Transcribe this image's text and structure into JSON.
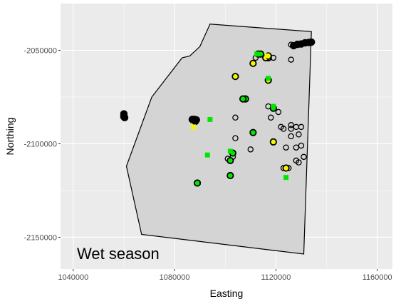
{
  "chart_data": {
    "type": "scatter",
    "title": "",
    "xlabel": "Easting",
    "ylabel": "Northing",
    "annotation": "Wet season",
    "xlim": [
      1035000,
      1166000
    ],
    "ylim": [
      -2167000,
      -2025000
    ],
    "x_ticks": [
      1040000,
      1080000,
      1120000,
      1160000
    ],
    "y_ticks": [
      -2050000,
      -2100000,
      -2150000
    ],
    "x_tick_labels": [
      "1040000",
      "1080000",
      "1120000",
      "1160000"
    ],
    "y_tick_labels": [
      "-2050000",
      "-2100000",
      "-2150000"
    ],
    "grid": true,
    "legend": "none",
    "colors": {
      "panel": "#ebebeb",
      "grid_major": "#ffffff",
      "polygon_fill": "#d4d4d4",
      "polygon_stroke": "#000000",
      "green": "#00e600",
      "yellow": "#f5f500",
      "ring": "#000000"
    },
    "polygon": [
      [
        1067000,
        -2148500
      ],
      [
        1061000,
        -2112000
      ],
      [
        1071000,
        -2075000
      ],
      [
        1083000,
        -2054000
      ],
      [
        1086000,
        -2053000
      ],
      [
        1090000,
        -2048000
      ],
      [
        1094000,
        -2036000
      ],
      [
        1134000,
        -2040000
      ],
      [
        1131000,
        -2159000
      ]
    ],
    "series": [
      {
        "marker": "filled-black",
        "points": [
          [
            1060000,
            -2084000
          ],
          [
            1060000,
            -2085500
          ],
          [
            1060300,
            -2086000
          ],
          [
            1087000,
            -2087000
          ],
          [
            1087800,
            -2087000
          ],
          [
            1088600,
            -2087200
          ],
          [
            1088200,
            -2088000
          ],
          [
            1127000,
            -2047500
          ],
          [
            1128500,
            -2046800
          ],
          [
            1130000,
            -2046600
          ],
          [
            1131500,
            -2046000
          ],
          [
            1133000,
            -2045800
          ],
          [
            1134000,
            -2045600
          ]
        ]
      },
      {
        "marker": "open-circle",
        "points": [
          [
            1112000,
            -2054000
          ],
          [
            1119000,
            -2054000
          ],
          [
            1126000,
            -2055000
          ],
          [
            1132000,
            -2046000
          ],
          [
            1129000,
            -2047000
          ],
          [
            1126000,
            -2047000
          ],
          [
            1122000,
            -2091000
          ],
          [
            1126000,
            -2090000
          ],
          [
            1128000,
            -2091000
          ],
          [
            1130000,
            -2091000
          ],
          [
            1123000,
            -2092000
          ],
          [
            1126000,
            -2092000
          ],
          [
            1118000,
            -2086000
          ],
          [
            1121000,
            -2083000
          ],
          [
            1126000,
            -2096000
          ],
          [
            1129000,
            -2095000
          ],
          [
            1124000,
            -2102000
          ],
          [
            1128000,
            -2102000
          ],
          [
            1130000,
            -2101000
          ],
          [
            1131000,
            -2107000
          ],
          [
            1128000,
            -2109000
          ],
          [
            1129000,
            -2110000
          ],
          [
            1104000,
            -2097000
          ],
          [
            1110000,
            -2103000
          ],
          [
            1101000,
            -2108000
          ],
          [
            1103000,
            -2107000
          ],
          [
            1104000,
            -2086000
          ],
          [
            1123000,
            -2113000
          ],
          [
            1125000,
            -2113000
          ],
          [
            1117000,
            -2080000
          ]
        ]
      },
      {
        "marker": "filled-green",
        "points": [
          [
            1113000,
            -2052000
          ],
          [
            1114000,
            -2052000
          ],
          [
            1117000,
            -2054000
          ],
          [
            1108000,
            -2076000
          ],
          [
            1119000,
            -2081000
          ],
          [
            1111000,
            -2094000
          ],
          [
            1103000,
            -2105000
          ],
          [
            1102000,
            -2109000
          ],
          [
            1102000,
            -2117000
          ],
          [
            1089000,
            -2121000
          ],
          [
            1107000,
            -2076000
          ]
        ]
      },
      {
        "marker": "filled-yellow",
        "points": [
          [
            1116000,
            -2054000
          ],
          [
            1111000,
            -2057000
          ],
          [
            1104000,
            -2064000
          ],
          [
            1117000,
            -2066000
          ],
          [
            1119000,
            -2099000
          ],
          [
            1124000,
            -2113000
          ],
          [
            1117000,
            -2053000
          ]
        ]
      },
      {
        "marker": "green-square",
        "points": [
          [
            1112500,
            -2052000
          ],
          [
            1094000,
            -2087000
          ],
          [
            1093000,
            -2106000
          ],
          [
            1124000,
            -2118000
          ],
          [
            1117000,
            -2065000
          ],
          [
            1119000,
            -2080000
          ],
          [
            1102000,
            -2104000
          ]
        ]
      },
      {
        "marker": "yellow-square",
        "points": [
          [
            1116500,
            -2053000
          ],
          [
            1087500,
            -2091000
          ]
        ]
      }
    ]
  }
}
